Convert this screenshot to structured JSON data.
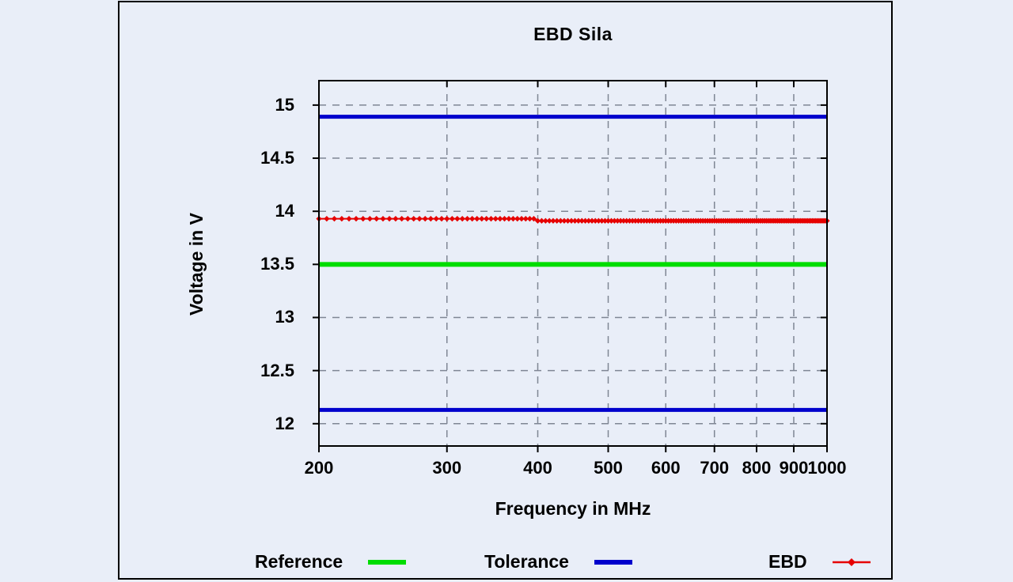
{
  "colors": {
    "background": "#e9eef8",
    "frame": "#000000",
    "plot_border": "#000000",
    "grid": "#7f8694",
    "text": "#000000"
  },
  "chart_data": {
    "type": "line",
    "title": "EBD Sila",
    "xlabel": "Frequency in MHz",
    "ylabel": "Voltage in V",
    "x_scale": "log",
    "x_range": [
      200,
      1000
    ],
    "x_ticks": [
      200,
      300,
      400,
      500,
      600,
      700,
      800,
      900,
      1000
    ],
    "y_range": [
      11.79,
      15.23
    ],
    "y_ticks": [
      12,
      12.5,
      13,
      13.5,
      14,
      14.5,
      15
    ],
    "grid": true,
    "legend_position": "below",
    "series": [
      {
        "name": "Reference",
        "color": "#00dd00",
        "line_width": 6,
        "marker": "none",
        "segments": [
          {
            "from": 200,
            "to": 1000,
            "value": 13.5
          }
        ]
      },
      {
        "name": "Tolerance",
        "color": "#0000cc",
        "line_width": 5,
        "marker": "none",
        "segments": [
          {
            "from": 200,
            "to": 1000,
            "value": 14.89
          },
          {
            "from": 200,
            "to": 1000,
            "value": 12.13
          }
        ]
      },
      {
        "name": "EBD",
        "color": "#e60000",
        "line_width": 2,
        "marker": "diamond",
        "marker_step_mhz": 5,
        "segments": [
          {
            "from": 200,
            "to": 395,
            "value": 13.93
          },
          {
            "from": 400,
            "to": 1000,
            "value": 13.91
          }
        ]
      }
    ]
  },
  "legend": {
    "items": [
      {
        "label": "Reference"
      },
      {
        "label": "Tolerance"
      },
      {
        "label": "EBD"
      }
    ]
  }
}
